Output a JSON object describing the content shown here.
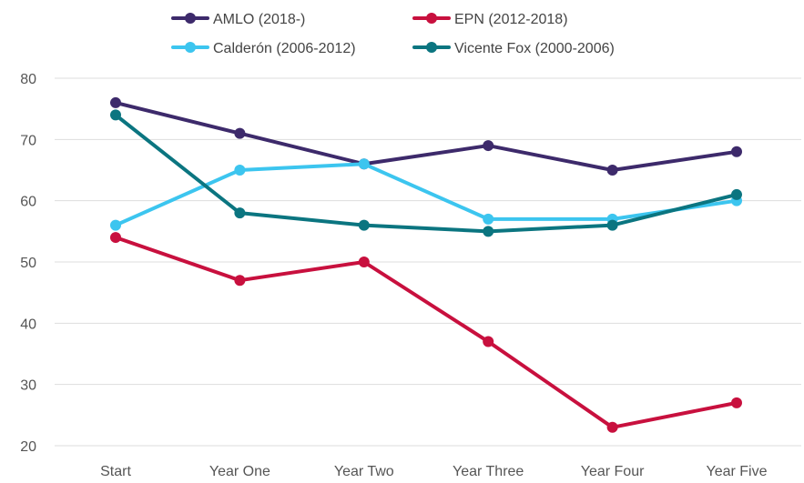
{
  "chart_data": {
    "type": "line",
    "categories": [
      "Start",
      "Year One",
      "Year Two",
      "Year Three",
      "Year Four",
      "Year Five"
    ],
    "series": [
      {
        "name": "AMLO (2018-)",
        "color": "#3d2a6b",
        "values": [
          76,
          71,
          66,
          69,
          65,
          68
        ]
      },
      {
        "name": "EPN (2012-2018)",
        "color": "#c8103e",
        "values": [
          54,
          47,
          50,
          37,
          23,
          27
        ]
      },
      {
        "name": "Calderón (2006-2012)",
        "color": "#3cc5ef",
        "values": [
          56,
          65,
          66,
          57,
          57,
          60
        ]
      },
      {
        "name": "Vicente Fox (2000-2006)",
        "color": "#0b7580",
        "values": [
          74,
          58,
          56,
          55,
          56,
          61
        ]
      }
    ],
    "ylim": [
      20,
      80
    ],
    "yticks": [
      20,
      30,
      40,
      50,
      60,
      70,
      80
    ],
    "grid": true,
    "legend_position": "top",
    "title": "",
    "xlabel": "",
    "ylabel": ""
  }
}
